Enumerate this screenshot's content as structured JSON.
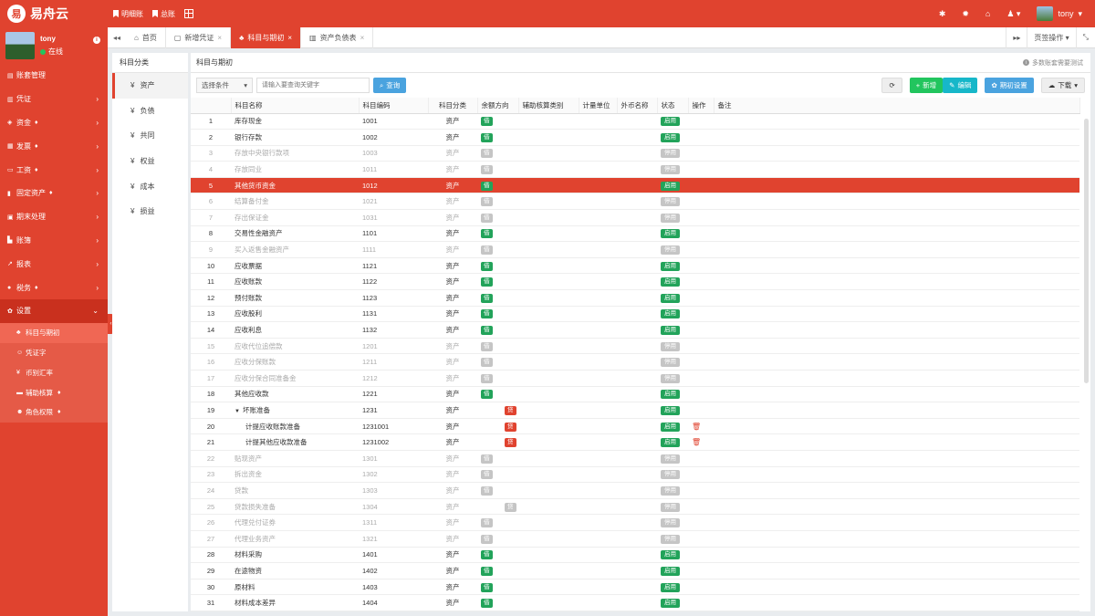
{
  "app": {
    "logo_text": "易舟云",
    "logo_mark": "易"
  },
  "topnav": {
    "links": [
      "明细账",
      "总账"
    ]
  },
  "user": {
    "name": "tony",
    "status": "在线"
  },
  "sidebar": {
    "items": [
      {
        "label": "账套管理",
        "icon": "book-icon"
      },
      {
        "label": "凭证",
        "icon": "voucher-icon"
      },
      {
        "label": "资金",
        "icon": "money-icon"
      },
      {
        "label": "发票",
        "icon": "invoice-icon"
      },
      {
        "label": "工资",
        "icon": "salary-icon"
      },
      {
        "label": "固定资产",
        "icon": "asset-icon"
      },
      {
        "label": "期末处理",
        "icon": "calendar-icon"
      },
      {
        "label": "账簿",
        "icon": "ledger-icon"
      },
      {
        "label": "报表",
        "icon": "chart-icon"
      },
      {
        "label": "税务",
        "icon": "tax-icon"
      },
      {
        "label": "设置",
        "icon": "gear-icon"
      }
    ],
    "sub_items": [
      {
        "label": "科目与期初",
        "icon": "sitemap-icon"
      },
      {
        "label": "凭证字",
        "icon": "tag-icon"
      },
      {
        "label": "币别汇率",
        "icon": "yen-icon"
      },
      {
        "label": "辅助核算",
        "icon": "folder-icon"
      },
      {
        "label": "角色权限",
        "icon": "users-icon"
      }
    ]
  },
  "tabs": [
    {
      "label": "首页"
    },
    {
      "label": "新增凭证"
    },
    {
      "label": "科目与期初"
    },
    {
      "label": "资产负债表"
    }
  ],
  "tabs_right": {
    "page_ops": "页签操作"
  },
  "category_panel": {
    "title": "科目分类",
    "items": [
      "资产",
      "负债",
      "共同",
      "权益",
      "成本",
      "损益"
    ]
  },
  "main": {
    "title": "科目与期初",
    "hint": "多数账套需要测试",
    "select_label": "选择条件",
    "search_placeholder": "请输入要查询关键字",
    "search_btn": "查询",
    "add_btn": "新增",
    "edit_btn": "编辑",
    "init_btn": "期初设置",
    "download_btn": "下载"
  },
  "table": {
    "headers": [
      "",
      "科目名称",
      "科目编码",
      "科目分类",
      "余额方向",
      "辅助核算类别",
      "计量单位",
      "外币名称",
      "状态",
      "操作",
      "备注"
    ],
    "rows": [
      {
        "n": "1",
        "name": "库存现金",
        "code": "1001",
        "cat": "资产",
        "dir": "借",
        "status": "启用",
        "on": true
      },
      {
        "n": "2",
        "name": "银行存款",
        "code": "1002",
        "cat": "资产",
        "dir": "借",
        "status": "启用",
        "on": true
      },
      {
        "n": "3",
        "name": "存放中央银行款项",
        "code": "1003",
        "cat": "资产",
        "dir": "借",
        "status": "停用",
        "on": false
      },
      {
        "n": "4",
        "name": "存放同业",
        "code": "1011",
        "cat": "资产",
        "dir": "借",
        "status": "停用",
        "on": false
      },
      {
        "n": "5",
        "name": "其他货币资金",
        "code": "1012",
        "cat": "资产",
        "dir": "借",
        "status": "启用",
        "on": true,
        "selected": true
      },
      {
        "n": "6",
        "name": "结算备付金",
        "code": "1021",
        "cat": "资产",
        "dir": "借",
        "status": "停用",
        "on": false
      },
      {
        "n": "7",
        "name": "存出保证金",
        "code": "1031",
        "cat": "资产",
        "dir": "借",
        "status": "停用",
        "on": false
      },
      {
        "n": "8",
        "name": "交易性金融资产",
        "code": "1101",
        "cat": "资产",
        "dir": "借",
        "status": "启用",
        "on": true
      },
      {
        "n": "9",
        "name": "买入返售金融资产",
        "code": "1111",
        "cat": "资产",
        "dir": "借",
        "status": "停用",
        "on": false
      },
      {
        "n": "10",
        "name": "应收票据",
        "code": "1121",
        "cat": "资产",
        "dir": "借",
        "status": "启用",
        "on": true
      },
      {
        "n": "11",
        "name": "应收账款",
        "code": "1122",
        "cat": "资产",
        "dir": "借",
        "status": "启用",
        "on": true
      },
      {
        "n": "12",
        "name": "预付账款",
        "code": "1123",
        "cat": "资产",
        "dir": "借",
        "status": "启用",
        "on": true
      },
      {
        "n": "13",
        "name": "应收股利",
        "code": "1131",
        "cat": "资产",
        "dir": "借",
        "status": "启用",
        "on": true
      },
      {
        "n": "14",
        "name": "应收利息",
        "code": "1132",
        "cat": "资产",
        "dir": "借",
        "status": "启用",
        "on": true
      },
      {
        "n": "15",
        "name": "应收代位追偿款",
        "code": "1201",
        "cat": "资产",
        "dir": "借",
        "status": "停用",
        "on": false
      },
      {
        "n": "16",
        "name": "应收分保账款",
        "code": "1211",
        "cat": "资产",
        "dir": "借",
        "status": "停用",
        "on": false
      },
      {
        "n": "17",
        "name": "应收分保合同准备金",
        "code": "1212",
        "cat": "资产",
        "dir": "借",
        "status": "停用",
        "on": false
      },
      {
        "n": "18",
        "name": "其他应收款",
        "code": "1221",
        "cat": "资产",
        "dir": "借",
        "status": "启用",
        "on": true
      },
      {
        "n": "19",
        "name": "坏账准备",
        "code": "1231",
        "cat": "资产",
        "dir": "贷",
        "dir_red": true,
        "status": "启用",
        "on": true,
        "parent": true
      },
      {
        "n": "20",
        "name": "计提应收账款准备",
        "code": "1231001",
        "cat": "资产",
        "dir": "贷",
        "dir_red": true,
        "status": "启用",
        "on": true,
        "child": true,
        "trash": true
      },
      {
        "n": "21",
        "name": "计提其他应收款准备",
        "code": "1231002",
        "cat": "资产",
        "dir": "贷",
        "dir_red": true,
        "status": "启用",
        "on": true,
        "child": true,
        "trash": true
      },
      {
        "n": "22",
        "name": "贴现资产",
        "code": "1301",
        "cat": "资产",
        "dir": "借",
        "status": "停用",
        "on": false
      },
      {
        "n": "23",
        "name": "拆出资金",
        "code": "1302",
        "cat": "资产",
        "dir": "借",
        "status": "停用",
        "on": false
      },
      {
        "n": "24",
        "name": "贷款",
        "code": "1303",
        "cat": "资产",
        "dir": "借",
        "status": "停用",
        "on": false
      },
      {
        "n": "25",
        "name": "贷款损失准备",
        "code": "1304",
        "cat": "资产",
        "dir": "贷",
        "dir_shift": true,
        "status": "停用",
        "on": false
      },
      {
        "n": "26",
        "name": "代理兑付证券",
        "code": "1311",
        "cat": "资产",
        "dir": "借",
        "status": "停用",
        "on": false
      },
      {
        "n": "27",
        "name": "代理业务资产",
        "code": "1321",
        "cat": "资产",
        "dir": "借",
        "status": "停用",
        "on": false
      },
      {
        "n": "28",
        "name": "材料采购",
        "code": "1401",
        "cat": "资产",
        "dir": "借",
        "status": "启用",
        "on": true
      },
      {
        "n": "29",
        "name": "在途物资",
        "code": "1402",
        "cat": "资产",
        "dir": "借",
        "status": "启用",
        "on": true
      },
      {
        "n": "30",
        "name": "原材料",
        "code": "1403",
        "cat": "资产",
        "dir": "借",
        "status": "启用",
        "on": true
      },
      {
        "n": "31",
        "name": "材料成本差异",
        "code": "1404",
        "cat": "资产",
        "dir": "借",
        "status": "启用",
        "on": true
      }
    ]
  },
  "colors": {
    "brand": "#e0432f",
    "green": "#22a35a",
    "gray": "#c5c5c5"
  }
}
